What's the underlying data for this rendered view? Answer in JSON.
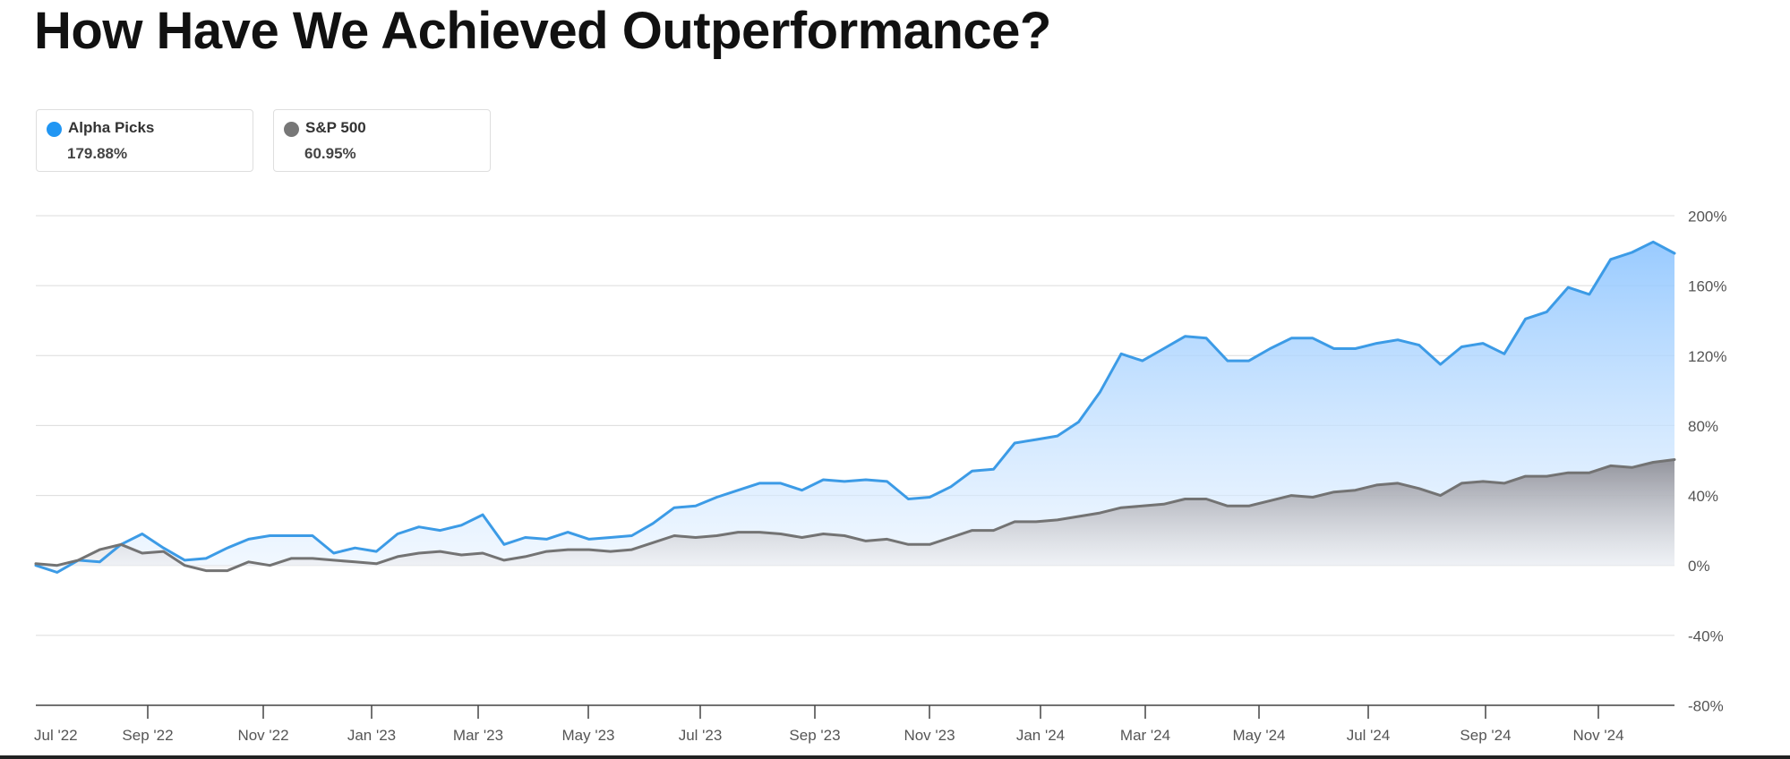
{
  "page": {
    "title": "How Have We Achieved Outperformance?"
  },
  "legend": [
    {
      "name": "Alpha Picks",
      "value": "179.88%",
      "color": "#2196f3"
    },
    {
      "name": "S&P 500",
      "value": "60.95%",
      "color": "#777777"
    }
  ],
  "chart_data": {
    "type": "area",
    "x_ticks": [
      "Jul '22",
      "Sep '22",
      "Nov '22",
      "Jan '23",
      "Mar '23",
      "May '23",
      "Jul '23",
      "Sep '23",
      "Nov '23",
      "Jan '24",
      "Mar '24",
      "May '24",
      "Jul '24",
      "Sep '24",
      "Nov '24"
    ],
    "y_ticks": [
      "200%",
      "160%",
      "120%",
      "80%",
      "40%",
      "0%",
      "-40%",
      "-80%"
    ],
    "ylim": [
      -80,
      200
    ],
    "x_range": [
      "Jul '22",
      "Jan '25"
    ],
    "grid": true,
    "series": [
      {
        "name": "Alpha Picks",
        "color": "#3c9be6",
        "fill_top": "#9dcdff",
        "values": [
          0,
          -4,
          3,
          2,
          12,
          18,
          10,
          3,
          4,
          10,
          15,
          17,
          17,
          17,
          7,
          10,
          8,
          18,
          22,
          20,
          23,
          29,
          12,
          16,
          15,
          19,
          15,
          16,
          17,
          24,
          33,
          34,
          39,
          43,
          47,
          47,
          43,
          49,
          48,
          49,
          48,
          38,
          39,
          45,
          54,
          55,
          70,
          72,
          74,
          82,
          99,
          121,
          117,
          124,
          131,
          130,
          117,
          117,
          124,
          130,
          130,
          124,
          124,
          127,
          129,
          126,
          115,
          125,
          127,
          121,
          141,
          145,
          159,
          155,
          175,
          179,
          185,
          178.5
        ]
      },
      {
        "name": "S&P 500",
        "color": "#737373",
        "fill_top": "#9b9ba2",
        "values": [
          1,
          0,
          3,
          9,
          12,
          7,
          8,
          0,
          -3,
          -3,
          2,
          0,
          4,
          4,
          3,
          2,
          1,
          5,
          7,
          8,
          6,
          7,
          3,
          5,
          8,
          9,
          9,
          8,
          9,
          13,
          17,
          16,
          17,
          19,
          19,
          18,
          16,
          18,
          17,
          14,
          15,
          12,
          12,
          16,
          20,
          20,
          25,
          25,
          26,
          28,
          30,
          33,
          34,
          35,
          38,
          38,
          34,
          34,
          37,
          40,
          39,
          42,
          43,
          46,
          47,
          44,
          40,
          47,
          48,
          47,
          51,
          51,
          53,
          53,
          57,
          56,
          59,
          60.5
        ]
      }
    ]
  }
}
